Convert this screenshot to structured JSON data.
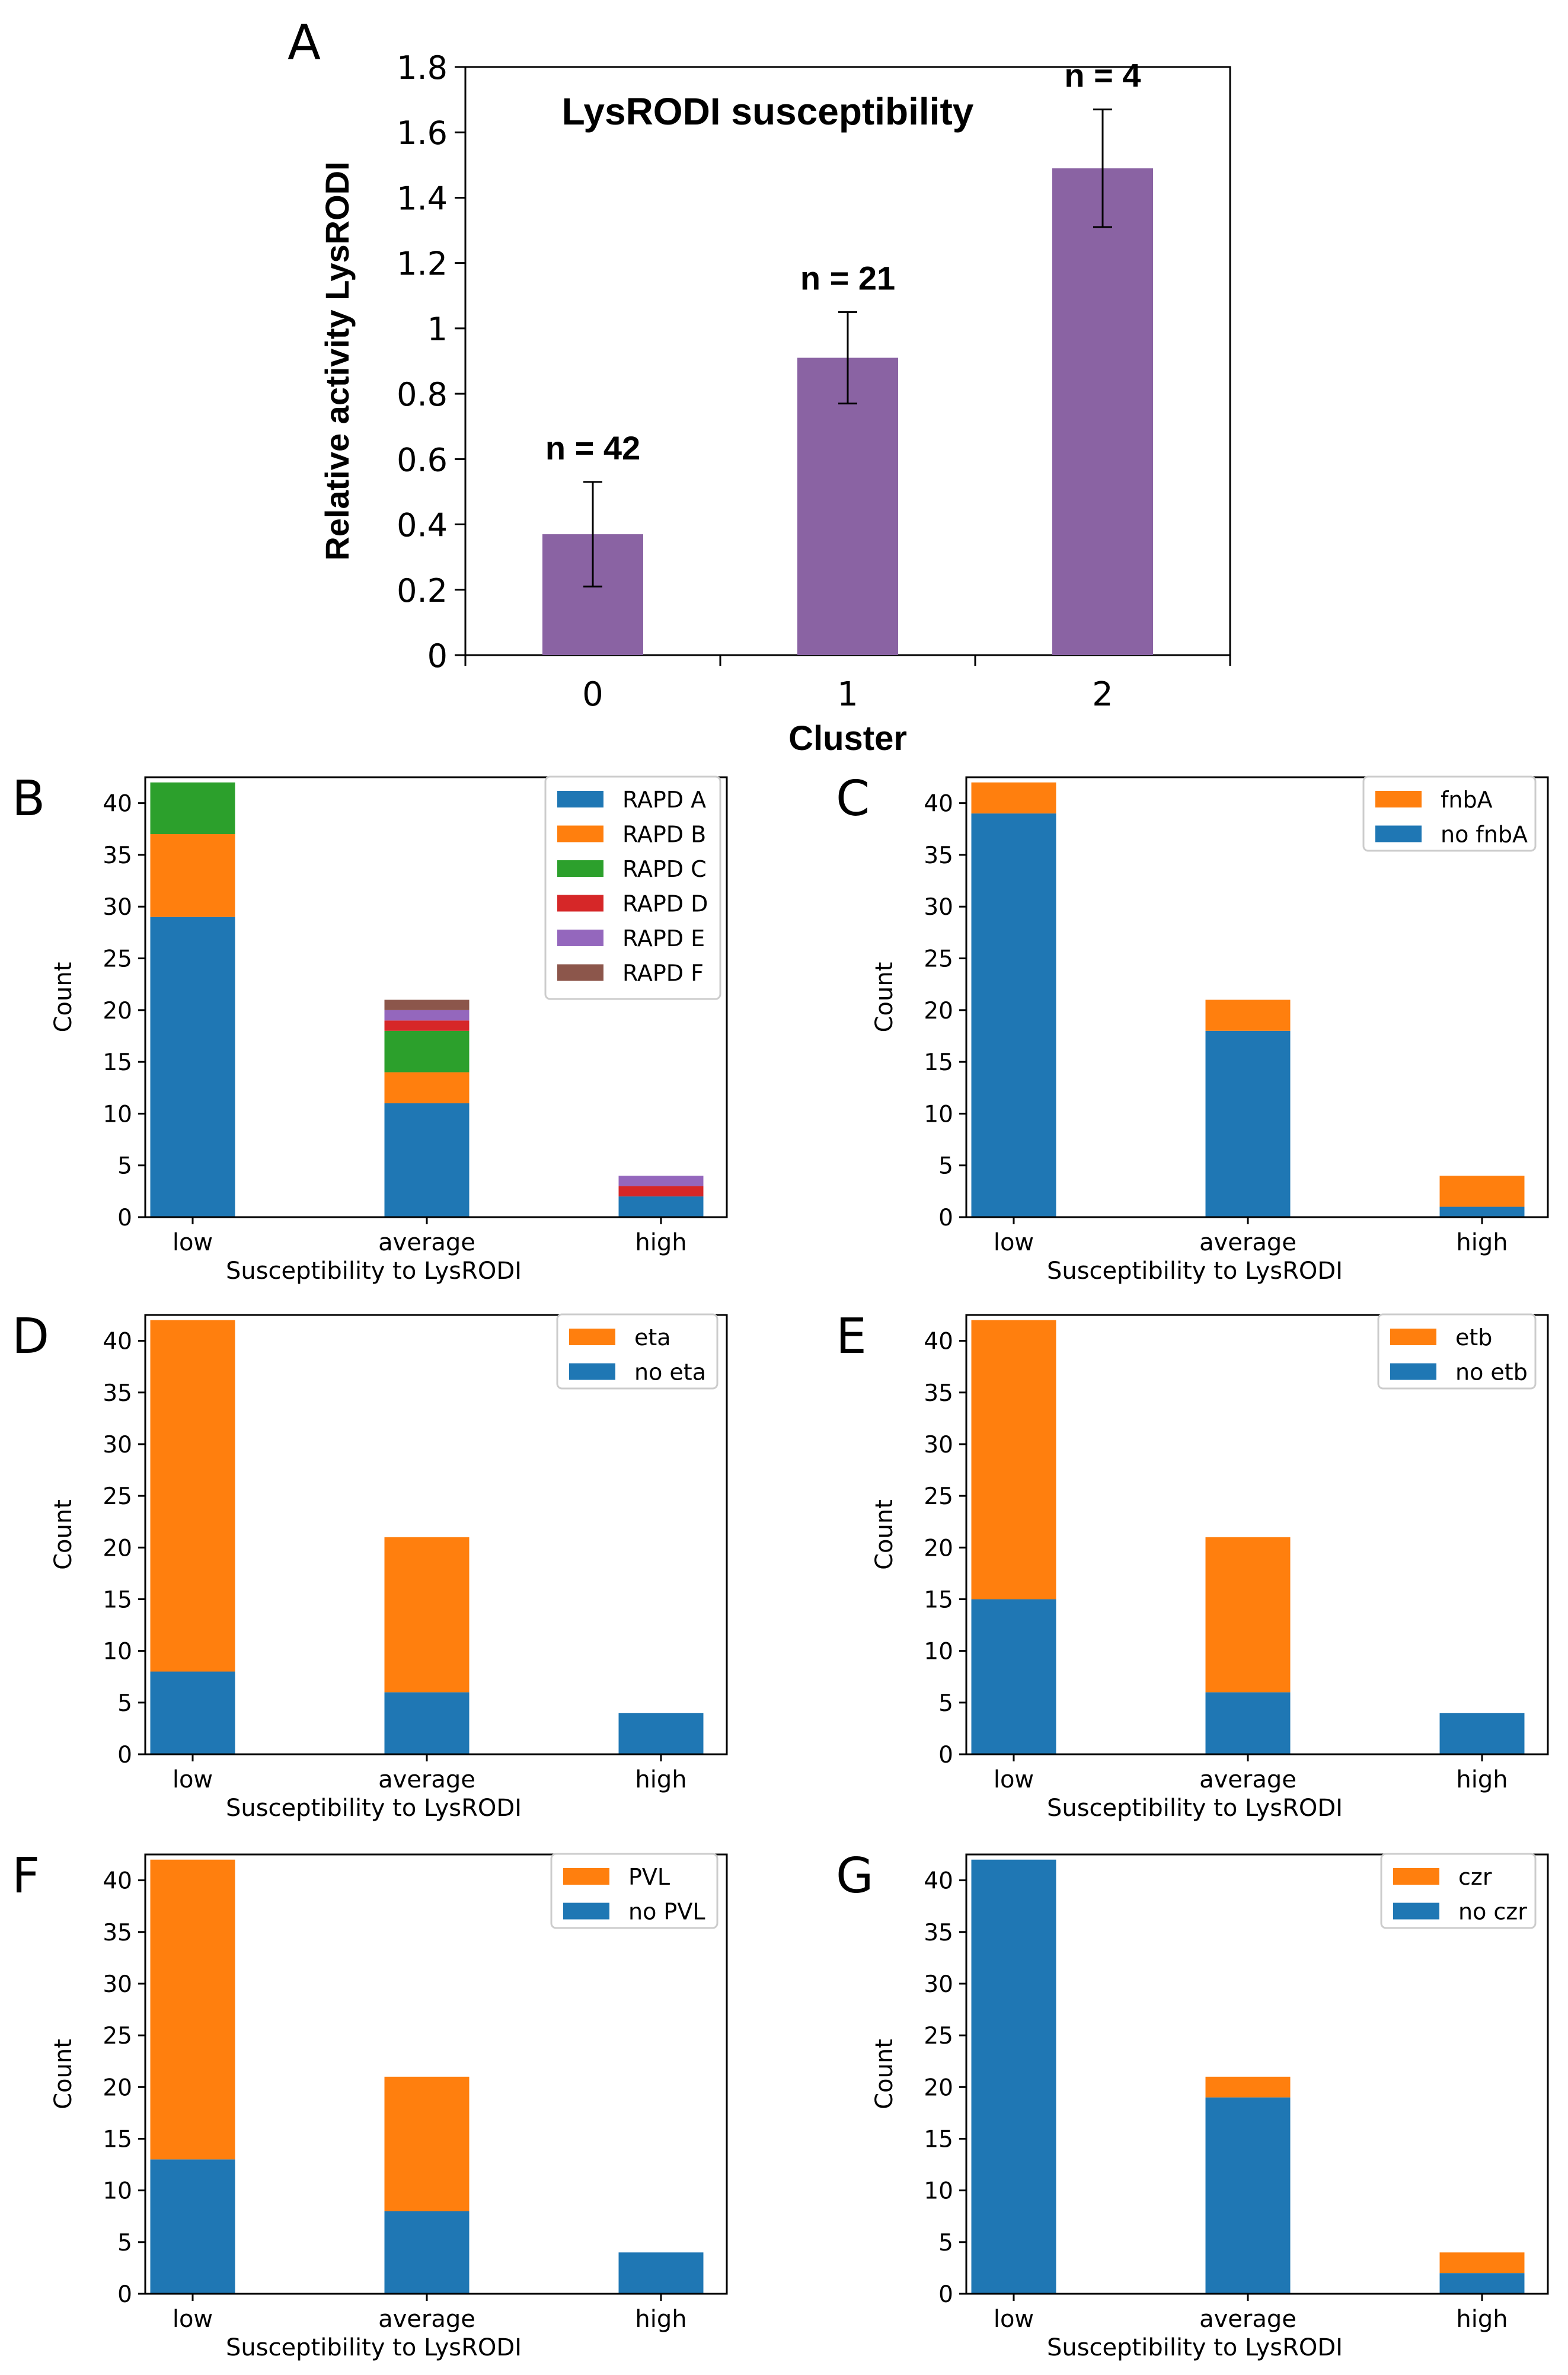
{
  "chart_data": [
    {
      "panel": "A",
      "type": "bar",
      "title": "LysRODI susceptibility",
      "xlabel": "Cluster",
      "ylabel": "Relative activity LysRODI",
      "categories": [
        "0",
        "1",
        "2"
      ],
      "values": [
        0.37,
        0.91,
        1.49
      ],
      "errors": [
        0.16,
        0.14,
        0.18
      ],
      "annotations": [
        "n = 42",
        "n = 21",
        "n = 4"
      ],
      "ylim": [
        0,
        1.8
      ],
      "yticks": [
        "0",
        "0.2",
        "0.4",
        "0.6",
        "0.8",
        "1",
        "1.2",
        "1.4",
        "1.6",
        "1.8"
      ],
      "color": "#8a63a3"
    },
    {
      "panel": "B",
      "type": "bar",
      "stacked": true,
      "xlabel": "Susceptibility to LysRODI",
      "ylabel": "Count",
      "categories": [
        "low",
        "average",
        "high"
      ],
      "ylim": [
        0,
        42.5
      ],
      "yticks": [
        "0",
        "5",
        "10",
        "15",
        "20",
        "25",
        "30",
        "35",
        "40"
      ],
      "series": [
        {
          "name": "RAPD A",
          "values": [
            29,
            11,
            2
          ],
          "color": "#1f77b4"
        },
        {
          "name": "RAPD B",
          "values": [
            8,
            3,
            0
          ],
          "color": "#ff7f0e"
        },
        {
          "name": "RAPD C",
          "values": [
            5,
            4,
            0
          ],
          "color": "#2ca02c"
        },
        {
          "name": "RAPD D",
          "values": [
            0,
            1,
            1
          ],
          "color": "#d62728"
        },
        {
          "name": "RAPD E",
          "values": [
            0,
            1,
            1
          ],
          "color": "#9467bd"
        },
        {
          "name": "RAPD F",
          "values": [
            0,
            1,
            0
          ],
          "color": "#8c564b"
        }
      ]
    },
    {
      "panel": "C",
      "type": "bar",
      "stacked": true,
      "xlabel": "Susceptibility to LysRODI",
      "ylabel": "Count",
      "categories": [
        "low",
        "average",
        "high"
      ],
      "ylim": [
        0,
        42.5
      ],
      "yticks": [
        "0",
        "5",
        "10",
        "15",
        "20",
        "25",
        "30",
        "35",
        "40"
      ],
      "series": [
        {
          "name": "no fnbA",
          "values": [
            39,
            18,
            1
          ],
          "color": "#1f77b4"
        },
        {
          "name": "fnbA",
          "values": [
            3,
            3,
            3
          ],
          "color": "#ff7f0e"
        }
      ]
    },
    {
      "panel": "D",
      "type": "bar",
      "stacked": true,
      "xlabel": "Susceptibility to LysRODI",
      "ylabel": "Count",
      "categories": [
        "low",
        "average",
        "high"
      ],
      "ylim": [
        0,
        42.5
      ],
      "yticks": [
        "0",
        "5",
        "10",
        "15",
        "20",
        "25",
        "30",
        "35",
        "40"
      ],
      "series": [
        {
          "name": "no eta",
          "values": [
            8,
            6,
            4
          ],
          "color": "#1f77b4"
        },
        {
          "name": "eta",
          "values": [
            34,
            15,
            0
          ],
          "color": "#ff7f0e"
        }
      ]
    },
    {
      "panel": "E",
      "type": "bar",
      "stacked": true,
      "xlabel": "Susceptibility to LysRODI",
      "ylabel": "Count",
      "categories": [
        "low",
        "average",
        "high"
      ],
      "ylim": [
        0,
        42.5
      ],
      "yticks": [
        "0",
        "5",
        "10",
        "15",
        "20",
        "25",
        "30",
        "35",
        "40"
      ],
      "series": [
        {
          "name": "no etb",
          "values": [
            15,
            6,
            4
          ],
          "color": "#1f77b4"
        },
        {
          "name": "etb",
          "values": [
            27,
            15,
            0
          ],
          "color": "#ff7f0e"
        }
      ]
    },
    {
      "panel": "F",
      "type": "bar",
      "stacked": true,
      "xlabel": "Susceptibility to LysRODI",
      "ylabel": "Count",
      "categories": [
        "low",
        "average",
        "high"
      ],
      "ylim": [
        0,
        42.5
      ],
      "yticks": [
        "0",
        "5",
        "10",
        "15",
        "20",
        "25",
        "30",
        "35",
        "40"
      ],
      "series": [
        {
          "name": "no PVL",
          "values": [
            13,
            8,
            4
          ],
          "color": "#1f77b4"
        },
        {
          "name": "PVL",
          "values": [
            29,
            13,
            0
          ],
          "color": "#ff7f0e"
        }
      ]
    },
    {
      "panel": "G",
      "type": "bar",
      "stacked": true,
      "xlabel": "Susceptibility to LysRODI",
      "ylabel": "Count",
      "categories": [
        "low",
        "average",
        "high"
      ],
      "ylim": [
        0,
        42.5
      ],
      "yticks": [
        "0",
        "5",
        "10",
        "15",
        "20",
        "25",
        "30",
        "35",
        "40"
      ],
      "series": [
        {
          "name": "no czr",
          "values": [
            42,
            19,
            2
          ],
          "color": "#1f77b4"
        },
        {
          "name": "czr",
          "values": [
            0,
            2,
            2
          ],
          "color": "#ff7f0e"
        }
      ]
    }
  ]
}
